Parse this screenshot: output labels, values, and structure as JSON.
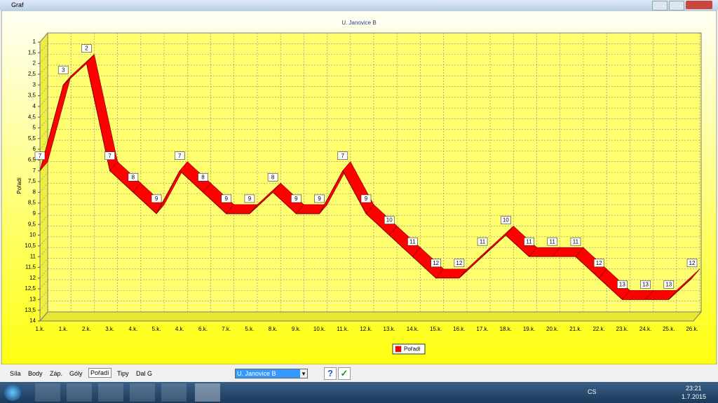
{
  "window": {
    "title": "Graf"
  },
  "chart_data": {
    "type": "line",
    "title": "U. Janovice B",
    "y_label": "Pořadí",
    "categories": [
      "1.k.",
      "1.k.",
      "2.k.",
      "3.k.",
      "4.k.",
      "5.k.",
      "4.k.",
      "6.k.",
      "7.k.",
      "5.k.",
      "8.k.",
      "9.k.",
      "10.k.",
      "11.k.",
      "12.k.",
      "13.k.",
      "14.k.",
      "15.k.",
      "16.k.",
      "17.k.",
      "18.k.",
      "19.k.",
      "20.k.",
      "21.k.",
      "22.k.",
      "23.k.",
      "24.k.",
      "25.k.",
      "26.k."
    ],
    "series": [
      {
        "name": "Pořadí",
        "color": "#ff0000",
        "values": [
          7,
          3,
          2,
          7,
          8,
          9,
          7,
          8,
          9,
          9,
          8,
          9,
          9,
          7,
          9,
          10,
          11,
          12,
          12,
          11,
          10,
          11,
          11,
          11,
          12,
          13,
          13,
          13,
          12
        ]
      }
    ],
    "ylim": [
      14,
      1
    ],
    "yticks": [
      1,
      {
        "value": 1.5,
        "label": "1,5"
      },
      2,
      {
        "value": 2.5,
        "label": "2,5"
      },
      3,
      {
        "value": 3.5,
        "label": "3,5"
      },
      4,
      {
        "value": 4.5,
        "label": "4,5"
      },
      5,
      {
        "value": 5.5,
        "label": "5,5"
      },
      6,
      {
        "value": 6.5,
        "label": "6,5"
      },
      7,
      {
        "value": 7.5,
        "label": "7,5"
      },
      8,
      {
        "value": 8.5,
        "label": "8,5"
      },
      9,
      {
        "value": 9.5,
        "label": "9,5"
      },
      10,
      {
        "value": 10.5,
        "label": "10,5"
      },
      11,
      {
        "value": 11.5,
        "label": "11,5"
      },
      12,
      {
        "value": 12.5,
        "label": "12,5"
      },
      13,
      {
        "value": 13.5,
        "label": "13,5"
      },
      14
    ],
    "grid": true,
    "legend": "bottom"
  },
  "tabs": [
    "Síla",
    "Body",
    "Záp.",
    "Góly",
    "Pořadí",
    "Tipy",
    "Dal G"
  ],
  "selected_tab": "Pořadí",
  "team_select": "U. Janovice B",
  "taskbar": {
    "language": "CS",
    "time": "23:21",
    "date": "1.7.2015"
  }
}
